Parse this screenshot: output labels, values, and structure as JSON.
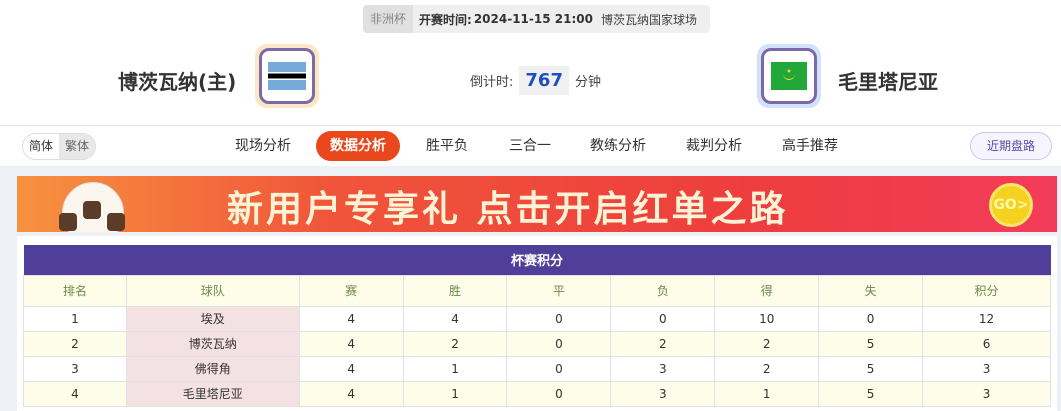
{
  "match": {
    "competition": "非洲杯",
    "time_label": "开赛时间:",
    "time": "2024-11-15 21:00",
    "venue": "博茨瓦纳国家球场"
  },
  "home": {
    "name": "博茨瓦纳(主)",
    "flag": "botswana-flag"
  },
  "away": {
    "name": "毛里塔尼亚",
    "flag": "mauritania-flag"
  },
  "countdown": {
    "label": "倒计时:",
    "value": "767",
    "unit": "分钟"
  },
  "lang": {
    "simplified": "简体",
    "traditional": "繁体"
  },
  "tabs": [
    "现场分析",
    "数据分析",
    "胜平负",
    "三合一",
    "教练分析",
    "裁判分析",
    "高手推荐"
  ],
  "active_tab": "数据分析",
  "recent_button": "近期盘路",
  "banner": {
    "text": "新用户专享礼  点击开启红单之路",
    "go": "GO>"
  },
  "standings": {
    "title": "杯赛积分",
    "columns": [
      "排名",
      "球队",
      "赛",
      "胜",
      "平",
      "负",
      "得",
      "失",
      "积分"
    ],
    "rows": [
      [
        "1",
        "埃及",
        "4",
        "4",
        "0",
        "0",
        "10",
        "0",
        "12"
      ],
      [
        "2",
        "博茨瓦纳",
        "4",
        "2",
        "0",
        "2",
        "2",
        "5",
        "6"
      ],
      [
        "3",
        "佛得角",
        "4",
        "1",
        "0",
        "3",
        "2",
        "5",
        "3"
      ],
      [
        "4",
        "毛里塔尼亚",
        "4",
        "1",
        "0",
        "3",
        "1",
        "5",
        "3"
      ]
    ]
  },
  "colors": {
    "accent": "#e8481c",
    "table_header": "#4f3f9b",
    "countdown": "#1e4fbf"
  }
}
